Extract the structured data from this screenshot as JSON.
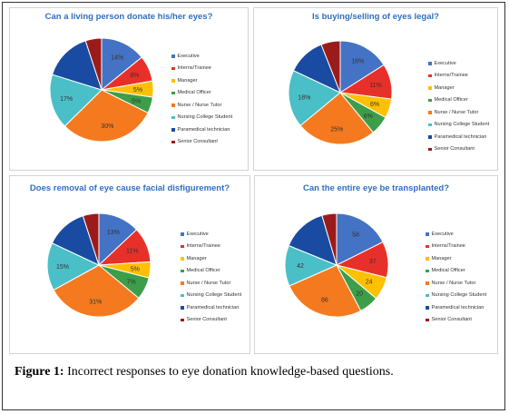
{
  "legend_categories": [
    "Executive",
    "Interns/Trainee",
    "Manager",
    "Medical Officer",
    "Nurse / Nurse Tutor",
    "Nursing College Student",
    "Paramedical technician",
    "Senior Consultant"
  ],
  "colors": [
    "#4472c4",
    "#e8302a",
    "#ffc000",
    "#3c9e48",
    "#f57a1f",
    "#4bbfc7",
    "#1a4ba2",
    "#9b1b1b"
  ],
  "caption": {
    "label": "Figure 1:",
    "text": "Incorrect responses to eye donation knowledge-based questions."
  },
  "chart_data": [
    {
      "type": "pie",
      "title": "Can a living person donate his/her eyes?",
      "categories": [
        "Executive",
        "Interns/Trainee",
        "Manager",
        "Medical Officer",
        "Nurse / Nurse Tutor",
        "Nursing College Student",
        "Paramedical technician",
        "Senior Consultant"
      ],
      "values": [
        14,
        8,
        5,
        5,
        30,
        17,
        15,
        5
      ],
      "labels": [
        "14%",
        "8%",
        "5%",
        "5%",
        "30%",
        "17%",
        "",
        ""
      ],
      "legend": "right"
    },
    {
      "type": "pie",
      "title": "Is buying/selling of eyes legal?",
      "categories": [
        "Executive",
        "Interns/Trainee",
        "Manager",
        "Medical Officer",
        "Nurse / Nurse Tutor",
        "Nursing College Student",
        "Paramedical technician",
        "Senior Consultant"
      ],
      "values": [
        16,
        11,
        6,
        6,
        25,
        18,
        12,
        6
      ],
      "labels": [
        "16%",
        "11%",
        "6%",
        "6%",
        "25%",
        "18%",
        "",
        ""
      ],
      "legend": "right"
    },
    {
      "type": "pie",
      "title": "Does removal of eye cause facial disfigurement?",
      "categories": [
        "Executive",
        "Interns/Trainee",
        "Manager",
        "Medical Officer",
        "Nurse / Nurse Tutor",
        "Nursing College Student",
        "Paramedical technician",
        "Senior Consultant"
      ],
      "values": [
        13,
        11,
        5,
        7,
        31,
        15,
        13,
        5
      ],
      "labels": [
        "13%",
        "11%",
        "5%",
        "7%",
        "31%",
        "15%",
        "",
        ""
      ],
      "legend": "right"
    },
    {
      "type": "pie",
      "title": "Can the entire eye be transplanted?",
      "categories": [
        "Executive",
        "Interns/Trainee",
        "Manager",
        "Medical Officer",
        "Nurse / Nurse Tutor",
        "Nursing College Student",
        "Paramedical technician",
        "Senior Consultant"
      ],
      "values": [
        58,
        37,
        24,
        20,
        86,
        42,
        47,
        15
      ],
      "labels": [
        "58",
        "37",
        "24",
        "20",
        "86",
        "42",
        "",
        ""
      ],
      "legend": "right"
    }
  ]
}
